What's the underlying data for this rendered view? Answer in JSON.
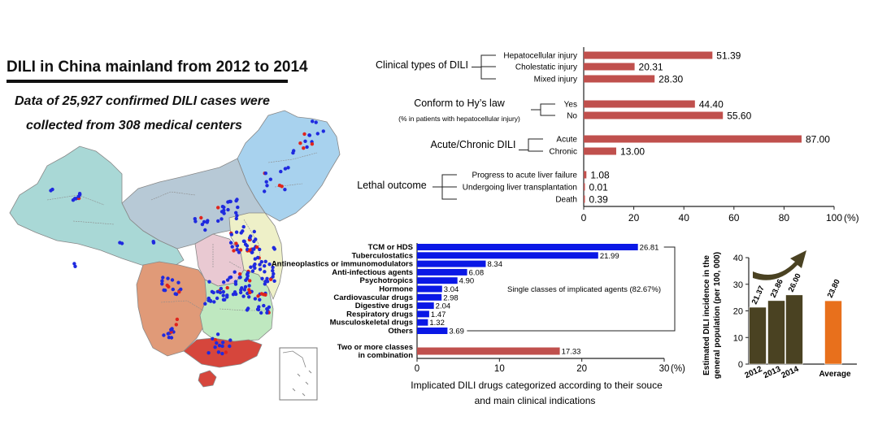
{
  "title": "DILI in China mainland from 2012 to 2014",
  "subtitle_line1": "Data of 25,927 confirmed DILI cases were",
  "subtitle_line2": "collected from 308 medical centers",
  "colors": {
    "red_bar": "#c0504d",
    "blue_bar": "#0a18e6",
    "dark_bar": "#4a4222",
    "orange_bar": "#e8701c",
    "map_teal": "#a9d8d6",
    "map_slate": "#b7c9d6",
    "map_sky": "#a8d2ee",
    "map_salmon": "#e09a78",
    "map_red": "#d6463c",
    "map_green": "#bfe8c0",
    "map_yellow": "#eef0c8",
    "map_pink": "#e9c9d2",
    "dot_blue": "#1f2adf",
    "dot_red": "#e0241c"
  },
  "chart_data": [
    {
      "type": "bar",
      "orientation": "horizontal",
      "groups": [
        {
          "name": "Clinical types of DILI",
          "categories": [
            "Hepatocellular injury",
            "Cholestatic injury",
            "Mixed injury"
          ],
          "values": [
            51.39,
            20.31,
            28.3
          ],
          "labels": [
            "51.39",
            "20.31",
            "28.30"
          ]
        },
        {
          "name": "Conform to Hy’s law",
          "note": "(% in patients with hepatocellular injury)",
          "categories": [
            "Yes",
            "No"
          ],
          "values": [
            44.4,
            55.6
          ],
          "labels": [
            "44.40",
            "55.60"
          ]
        },
        {
          "name": "Acute/Chronic DILI",
          "categories": [
            "Acute",
            "Chronic"
          ],
          "values": [
            87.0,
            13.0
          ],
          "labels": [
            "87.00",
            "13.00"
          ]
        },
        {
          "name": "Lethal outcome",
          "categories": [
            "Progress to acute liver failure",
            "Undergoing liver transplantation",
            "Death"
          ],
          "values": [
            1.08,
            0.01,
            0.39
          ],
          "labels": [
            "1.08",
            "0.01",
            "0.39"
          ]
        }
      ],
      "xlim": [
        0,
        100
      ],
      "xticks": [
        "0",
        "20",
        "40",
        "60",
        "80",
        "100"
      ],
      "xunit": "(%)"
    },
    {
      "type": "bar",
      "orientation": "horizontal",
      "categories": [
        "TCM or HDS",
        "Tuberculostatics",
        "Antineoplastics or immunomodulators",
        "Anti-infectious agents",
        "Psychotropics",
        "Hormone",
        "Cardiovascular drugs",
        "Digestive drugs",
        "Respiratory drugs",
        "Musculoskeletal drugs",
        "Others",
        "Two or more classes in combination"
      ],
      "category_lines": [
        [
          "TCM or HDS"
        ],
        [
          "Tuberculostatics"
        ],
        [
          "Antineoplastics or immunomodulators"
        ],
        [
          "Anti-infectious agents"
        ],
        [
          "Psychotropics"
        ],
        [
          "Hormone"
        ],
        [
          "Cardiovascular drugs"
        ],
        [
          "Digestive drugs"
        ],
        [
          "Respiratory drugs"
        ],
        [
          "Musculoskeletal drugs"
        ],
        [
          "Others"
        ],
        [
          "Two or more classes",
          "in combination"
        ]
      ],
      "values": [
        26.81,
        21.99,
        8.34,
        6.08,
        4.9,
        3.04,
        2.98,
        2.04,
        1.47,
        1.32,
        3.69,
        17.33
      ],
      "labels": [
        "26.81",
        "21.99",
        "8.34",
        "6.08",
        "4.90",
        "3.04",
        "2.98",
        "2.04",
        "1.47",
        "1.32",
        "3.69",
        "17.33"
      ],
      "bar_colors": [
        "blue",
        "blue",
        "blue",
        "blue",
        "blue",
        "blue",
        "blue",
        "blue",
        "blue",
        "blue",
        "blue",
        "red"
      ],
      "annotation": "Single classes of implicated agents (82.67%)",
      "xlim": [
        0,
        30
      ],
      "xticks": [
        "0",
        "10",
        "20",
        "30"
      ],
      "xunit": "(%)",
      "caption_line1": "Implicated DILI drugs categorized according to their souce",
      "caption_line2": "and main clinical indications"
    },
    {
      "type": "bar",
      "categories": [
        "2012",
        "2013",
        "2014",
        "Average"
      ],
      "values": [
        21.37,
        23.86,
        26.0,
        23.8
      ],
      "labels": [
        "21.37",
        "23.86",
        "26.00",
        "23.80"
      ],
      "ylabel_line1": "Estimated DILI incidence in the",
      "ylabel_line2": "general population (per 100, 000)",
      "ylim": [
        0,
        40
      ],
      "yticks": [
        "0",
        "10",
        "20",
        "30",
        "40"
      ]
    }
  ]
}
